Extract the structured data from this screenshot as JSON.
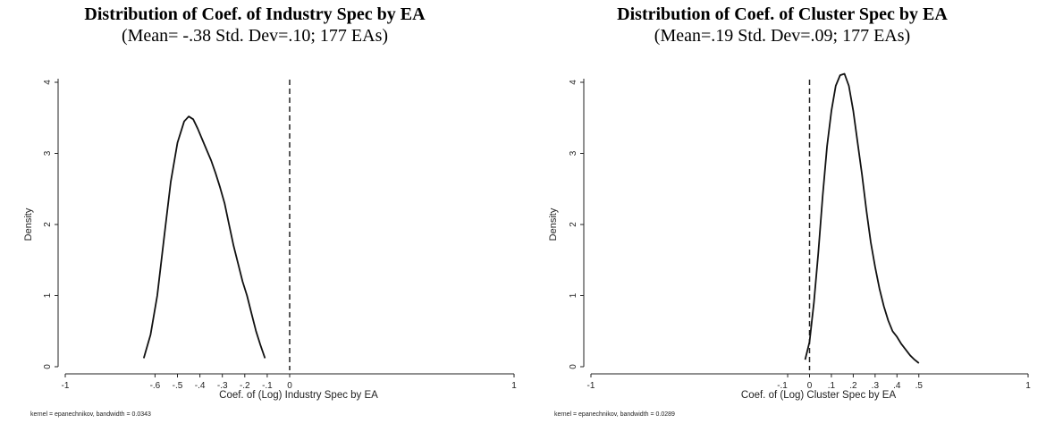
{
  "chart_data": [
    {
      "type": "line",
      "title": "Distribution of Coef. of Industry Spec by EA",
      "subtitle": "(Mean= -.38 Std. Dev=.10; 177 EAs)",
      "xlabel": "Coef. of (Log) Industry Spec by EA",
      "ylabel": "Density",
      "note": "kernel = epanechnikov, bandwidth = 0.0343",
      "xlim": [
        -1,
        1
      ],
      "ylim": [
        0,
        4
      ],
      "x_ticks": [
        -1,
        -0.6,
        -0.5,
        -0.4,
        -0.3,
        -0.2,
        -0.1,
        0,
        1
      ],
      "x_tick_labels": [
        "-1",
        "-.6",
        "-.5",
        "-.4",
        "-.3",
        "-.2",
        "-.1",
        "0",
        "1"
      ],
      "y_ticks": [
        0,
        1,
        2,
        3,
        4
      ],
      "y_tick_labels": [
        "0",
        "1",
        "2",
        "3",
        "4"
      ],
      "vline": 0,
      "series": [
        {
          "x": [
            -0.65,
            -0.62,
            -0.59,
            -0.56,
            -0.53,
            -0.5,
            -0.47,
            -0.45,
            -0.43,
            -0.41,
            -0.39,
            -0.37,
            -0.35,
            -0.33,
            -0.31,
            -0.29,
            -0.27,
            -0.25,
            -0.23,
            -0.21,
            -0.19,
            -0.17,
            -0.15,
            -0.13,
            -0.11
          ],
          "y": [
            0.12,
            0.45,
            1.0,
            1.8,
            2.6,
            3.15,
            3.45,
            3.52,
            3.48,
            3.35,
            3.2,
            3.05,
            2.9,
            2.72,
            2.52,
            2.3,
            2.0,
            1.7,
            1.45,
            1.2,
            1.0,
            0.75,
            0.5,
            0.3,
            0.12
          ]
        }
      ]
    },
    {
      "type": "line",
      "title": "Distribution of Coef. of Cluster Spec  by EA",
      "subtitle": "(Mean=.19 Std. Dev=.09; 177 EAs)",
      "xlabel": "Coef. of (Log) Cluster Spec by EA",
      "ylabel": "Density",
      "note": "kernel = epanechnikov, bandwidth = 0.0289",
      "xlim": [
        -1,
        1
      ],
      "ylim": [
        0,
        4
      ],
      "x_ticks": [
        -1,
        -0.1,
        0,
        0.1,
        0.2,
        0.3,
        0.4,
        0.5,
        1
      ],
      "x_tick_labels": [
        "-1",
        "-.1",
        "0",
        ".1",
        ".2",
        ".3",
        ".4",
        ".5",
        "1"
      ],
      "y_ticks": [
        0,
        1,
        2,
        3,
        4
      ],
      "y_tick_labels": [
        "0",
        "1",
        "2",
        "3",
        "4"
      ],
      "vline": 0,
      "series": [
        {
          "x": [
            -0.02,
            0.0,
            0.02,
            0.04,
            0.06,
            0.08,
            0.1,
            0.12,
            0.14,
            0.16,
            0.18,
            0.2,
            0.22,
            0.24,
            0.26,
            0.28,
            0.3,
            0.32,
            0.34,
            0.36,
            0.38,
            0.4,
            0.42,
            0.44,
            0.46,
            0.48,
            0.5
          ],
          "y": [
            0.1,
            0.35,
            0.9,
            1.6,
            2.4,
            3.1,
            3.6,
            3.95,
            4.1,
            4.12,
            3.95,
            3.6,
            3.15,
            2.7,
            2.2,
            1.75,
            1.4,
            1.1,
            0.85,
            0.65,
            0.5,
            0.42,
            0.32,
            0.24,
            0.16,
            0.1,
            0.05
          ]
        }
      ]
    }
  ]
}
